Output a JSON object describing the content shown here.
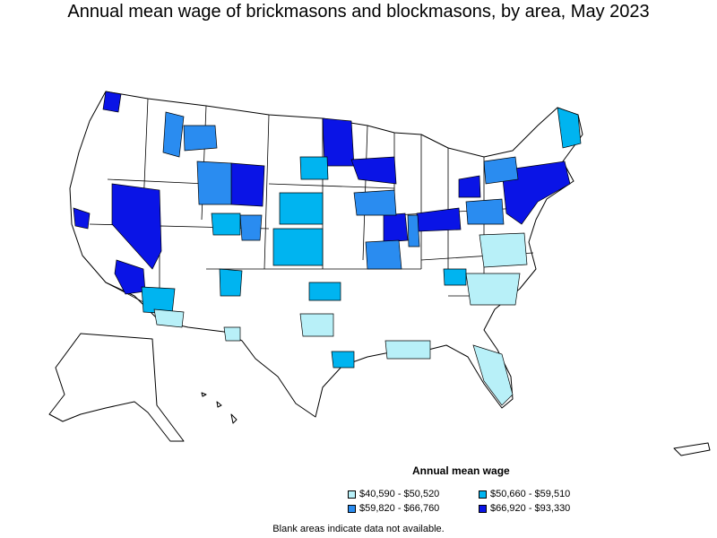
{
  "title": "Annual mean wage of brickmasons and blockmasons, by area, May 2023",
  "legend": {
    "title": "Annual mean wage",
    "items": [
      {
        "label": "$40,590 - $50,520",
        "color": "#b8f0f8"
      },
      {
        "label": "$50,660 - $59,510",
        "color": "#00b4f0"
      },
      {
        "label": "$59,820 - $66,760",
        "color": "#2a8cf0"
      },
      {
        "label": "$66,920 - $93,330",
        "color": "#0a14e6"
      }
    ]
  },
  "note": "Blank areas indicate data not available.",
  "colors": {
    "blank": "#ffffff",
    "border": "#000000"
  }
}
